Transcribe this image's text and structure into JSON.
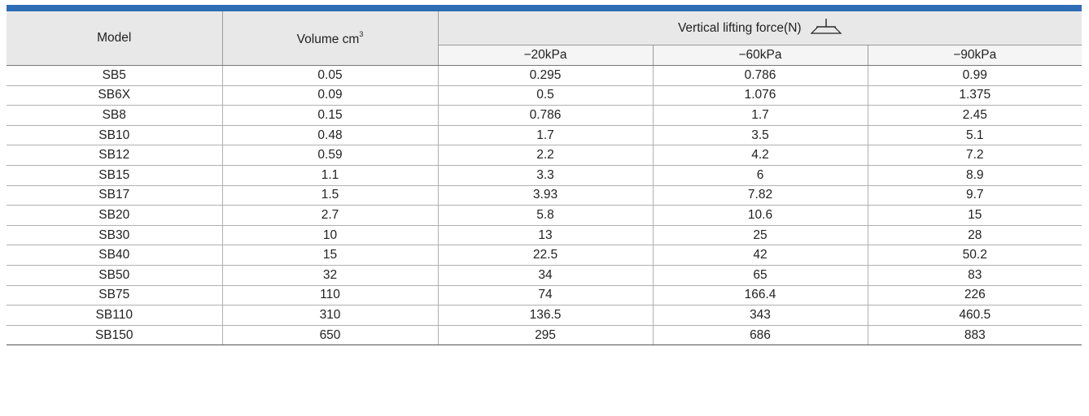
{
  "header": {
    "model": "Model",
    "volume": "Volume cm",
    "volume_sup": "3",
    "force": "Vertical lifting force(N)",
    "force_icon": "vertical-force-icon",
    "pressures": [
      "−20kPa",
      "−60kPa",
      "−90kPa"
    ]
  },
  "rows": [
    [
      "SB5",
      "0.05",
      "0.295",
      "0.786",
      "0.99"
    ],
    [
      "SB6X",
      "0.09",
      "0.5",
      "1.076",
      "1.375"
    ],
    [
      "SB8",
      "0.15",
      "0.786",
      "1.7",
      "2.45"
    ],
    [
      "SB10",
      "0.48",
      "1.7",
      "3.5",
      "5.1"
    ],
    [
      "SB12",
      "0.59",
      "2.2",
      "4.2",
      "7.2"
    ],
    [
      "SB15",
      "1.1",
      "3.3",
      "6",
      "8.9"
    ],
    [
      "SB17",
      "1.5",
      "3.93",
      "7.82",
      "9.7"
    ],
    [
      "SB20",
      "2.7",
      "5.8",
      "10.6",
      "15"
    ],
    [
      "SB30",
      "10",
      "13",
      "25",
      "28"
    ],
    [
      "SB40",
      "15",
      "22.5",
      "42",
      "50.2"
    ],
    [
      "SB50",
      "32",
      "34",
      "65",
      "83"
    ],
    [
      "SB75",
      "110",
      "74",
      "166.4",
      "226"
    ],
    [
      "SB110",
      "310",
      "136.5",
      "343",
      "460.5"
    ],
    [
      "SB150",
      "650",
      "295",
      "686",
      "883"
    ]
  ],
  "colors": {
    "accent_bar": "#2f6db5",
    "header_bg": "#e8e8e8"
  }
}
